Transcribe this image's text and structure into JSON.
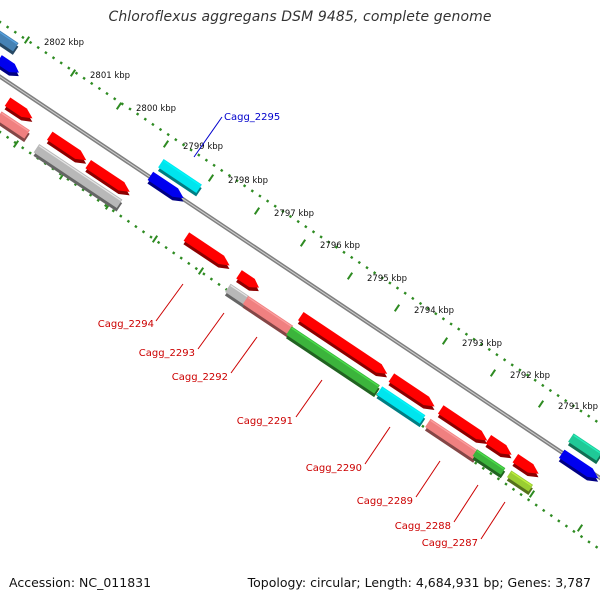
{
  "title": "Chloroflexus aggregans DSM 9485, complete genome",
  "footer": {
    "accession": "Accession: NC_011831",
    "summary": "Topology: circular; Length: 4,684,931 bp; Genes: 3,787"
  },
  "colors": {
    "backbone": "#808080",
    "ruler_dots": "#2e8b22",
    "forward_label": "#0000cc",
    "reverse_label": "#cc0000",
    "red": "#ff0000",
    "salmon": "#f08080",
    "green": "#3cb43c",
    "lime": "#9acd32",
    "cyan": "#00e5ee",
    "blue": "#0000ee",
    "gray": "#b8b8b8",
    "steel": "#4682b4",
    "teal": "#20c997"
  },
  "kbp_ticks": [
    {
      "label": "2802 kbp"
    },
    {
      "label": "2801 kbp"
    },
    {
      "label": "2800 kbp"
    },
    {
      "label": "2799 kbp"
    },
    {
      "label": "2798 kbp"
    },
    {
      "label": "2797 kbp"
    },
    {
      "label": "2796 kbp"
    },
    {
      "label": "2795 kbp"
    },
    {
      "label": "2794 kbp"
    },
    {
      "label": "2793 kbp"
    },
    {
      "label": "2792 kbp"
    },
    {
      "label": "2791 kbp"
    }
  ],
  "labeled_genes": [
    {
      "name": "Cagg_2295",
      "strand": "forward"
    },
    {
      "name": "Cagg_2294",
      "strand": "reverse"
    },
    {
      "name": "Cagg_2293",
      "strand": "reverse"
    },
    {
      "name": "Cagg_2292",
      "strand": "reverse"
    },
    {
      "name": "Cagg_2291",
      "strand": "reverse"
    },
    {
      "name": "Cagg_2290",
      "strand": "reverse"
    },
    {
      "name": "Cagg_2289",
      "strand": "reverse"
    },
    {
      "name": "Cagg_2288",
      "strand": "reverse"
    },
    {
      "name": "Cagg_2287",
      "strand": "reverse"
    }
  ]
}
